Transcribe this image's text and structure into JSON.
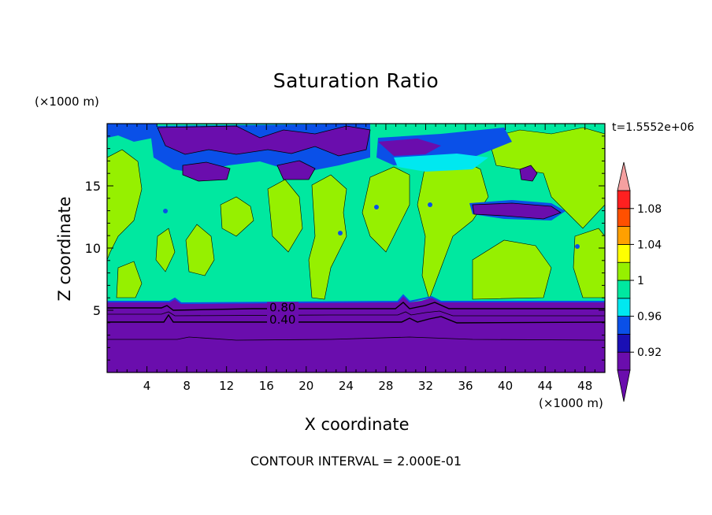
{
  "chart_data": {
    "type": "heatmap",
    "title": "Saturation Ratio",
    "xlabel": "X coordinate",
    "ylabel": "Z coordinate",
    "x_unit": "(×1000 m)",
    "y_unit": "(×1000 m)",
    "time_label": "t=1.5552e+06",
    "footer": "CONTOUR INTERVAL = 2.000E-01",
    "xlim": [
      0,
      50
    ],
    "ylim": [
      0,
      20
    ],
    "x_ticks": [
      4,
      8,
      12,
      16,
      20,
      24,
      28,
      32,
      36,
      40,
      44,
      48
    ],
    "y_ticks": [
      5,
      10,
      15
    ],
    "contour_labels": [
      {
        "text": "0.80",
        "x": 16.3,
        "z": 5.1
      },
      {
        "text": "0.40",
        "x": 16.3,
        "z": 4.1
      }
    ],
    "colorbar": {
      "levels": [
        0.9,
        0.92,
        0.94,
        0.96,
        0.98,
        1.0,
        1.02,
        1.04,
        1.06,
        1.08,
        1.1
      ],
      "tick_labels": [
        "0.92",
        "0.96",
        "1",
        "1.04",
        "1.08"
      ],
      "colors": [
        "#6a0dad",
        "#1a0fb4",
        "#0a50e8",
        "#00e8f0",
        "#00e8a0",
        "#96f000",
        "#ffff00",
        "#ffa000",
        "#ff5000",
        "#ff2020",
        "#f5a0a0"
      ],
      "under_color": "#6a0dad",
      "over_color": "#f5a0a0"
    },
    "regions": {
      "surface_layer_top_z": 5.6,
      "surface_layer_value": "< 0.92",
      "mid_layer_dominant": "0.98-1.00 (green-cyan) with patches 1.00-1.02 (light green)",
      "upper_dry_zones": [
        {
          "x_range": [
            4,
            22
          ],
          "z_range": [
            16.5,
            20
          ]
        },
        {
          "x_range": [
            22,
            32
          ],
          "z_range": [
            17,
            20
          ]
        },
        {
          "x_range": [
            29,
            39
          ],
          "z_range": [
            16,
            18
          ]
        },
        {
          "x_range": [
            35,
            37
          ],
          "z_range": [
            18,
            19
          ]
        },
        {
          "x_range": [
            42,
            44
          ],
          "z_range": [
            15.5,
            16.5
          ]
        },
        {
          "x_range": [
            37,
            45
          ],
          "z_range": [
            12.5,
            13.5
          ]
        }
      ]
    }
  }
}
